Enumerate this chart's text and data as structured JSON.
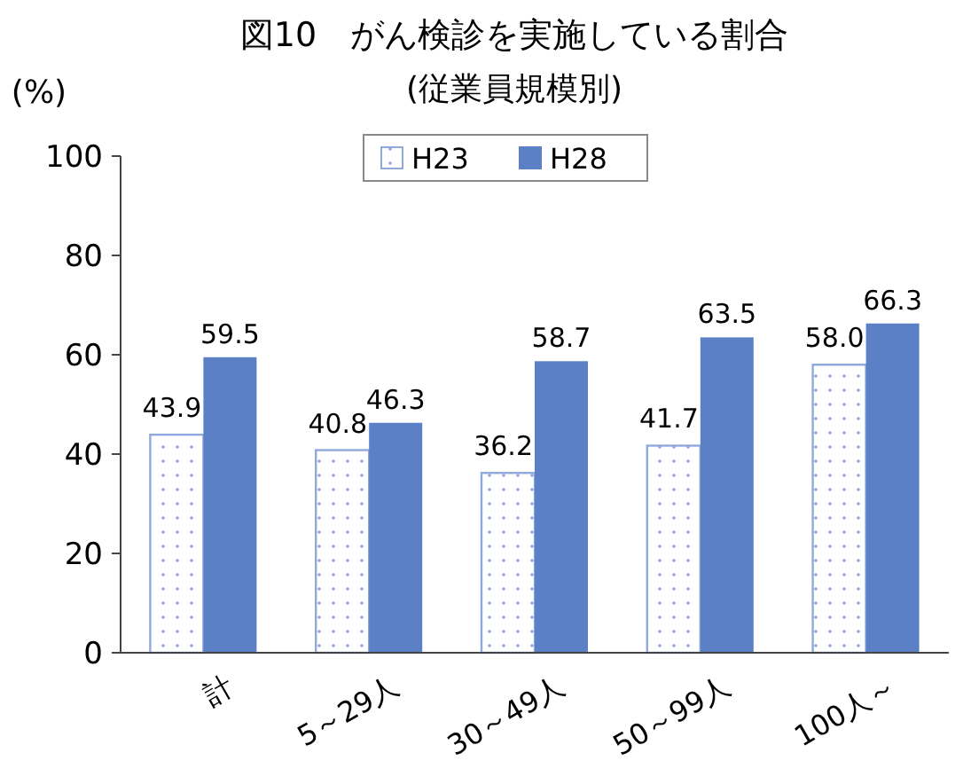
{
  "chart_data": {
    "type": "bar",
    "title": "図10　がん検診を実施している割合",
    "subtitle": "(従業員規模別)",
    "ylabel": "(%)",
    "categories": [
      "計",
      "5～29人",
      "30～49人",
      "50～99人",
      "100人～"
    ],
    "series": [
      {
        "name": "H23",
        "color": "#8fa9dc",
        "values": [
          43.9,
          40.8,
          36.2,
          41.7,
          58.0
        ],
        "value_labels": [
          "43.9",
          "40.8",
          "36.2",
          "41.7",
          "58.0"
        ]
      },
      {
        "name": "H28",
        "color": "#5b80c6",
        "values": [
          59.5,
          46.3,
          58.7,
          63.5,
          66.3
        ],
        "value_labels": [
          "59.5",
          "46.3",
          "58.7",
          "63.5",
          "66.3"
        ]
      }
    ],
    "ylim": [
      0,
      100
    ],
    "yticks": [
      0,
      20,
      40,
      60,
      80,
      100
    ],
    "legend": "top",
    "grid": false
  }
}
